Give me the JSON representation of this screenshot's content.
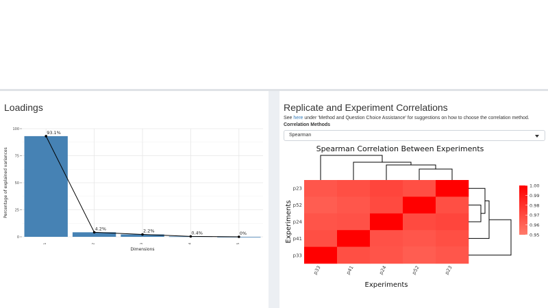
{
  "left_panel": {
    "title": "Loadings"
  },
  "right_panel": {
    "title": "Replicate and Experiment Correlations",
    "info_prefix": "See ",
    "info_link": "here",
    "info_suffix": " under 'Method and Question Choice Assistance' for suggestions on how to choose the correlation method.",
    "methods_label": "Correlation Methods",
    "method_selected": "Spearman"
  },
  "chart_data": [
    {
      "type": "bar",
      "title": "",
      "xlabel": "Dimensions",
      "ylabel": "Percentage of explained variances",
      "categories": [
        "1",
        "2",
        "3",
        "4",
        "5"
      ],
      "values": [
        93.1,
        4.2,
        2.2,
        0.4,
        0
      ],
      "data_labels": [
        "93.1%",
        "4.2%",
        "2.2%",
        "0.4%",
        "0%"
      ],
      "ylim": [
        0,
        100
      ],
      "yticks": [
        "0",
        "25",
        "50",
        "75",
        "100"
      ],
      "grid": true,
      "bar_color": "#4682b4",
      "line_color": "#000000"
    },
    {
      "type": "heatmap",
      "title": "Spearman Correlation Between Experiments",
      "xlabel": "Experiments",
      "ylabel": "Experiments",
      "x": [
        "p33",
        "p41",
        "p24",
        "p52",
        "p23"
      ],
      "y": [
        "p23",
        "p52",
        "p24",
        "p41",
        "p33"
      ],
      "values": [
        [
          0.965,
          0.968,
          0.972,
          0.968,
          1.0
        ],
        [
          0.962,
          0.965,
          0.97,
          1.0,
          0.968
        ],
        [
          0.966,
          0.967,
          1.0,
          0.97,
          0.972
        ],
        [
          0.968,
          1.0,
          0.967,
          0.965,
          0.968
        ],
        [
          1.0,
          0.968,
          0.966,
          0.962,
          0.965
        ]
      ],
      "legend": {
        "ticks": [
          "1.00",
          "0.99",
          "0.98",
          "0.97",
          "0.96",
          "0.95"
        ],
        "min": 0.95,
        "max": 1.0
      },
      "color_low": "#ff7b6b",
      "color_high": "#ff0000"
    }
  ]
}
